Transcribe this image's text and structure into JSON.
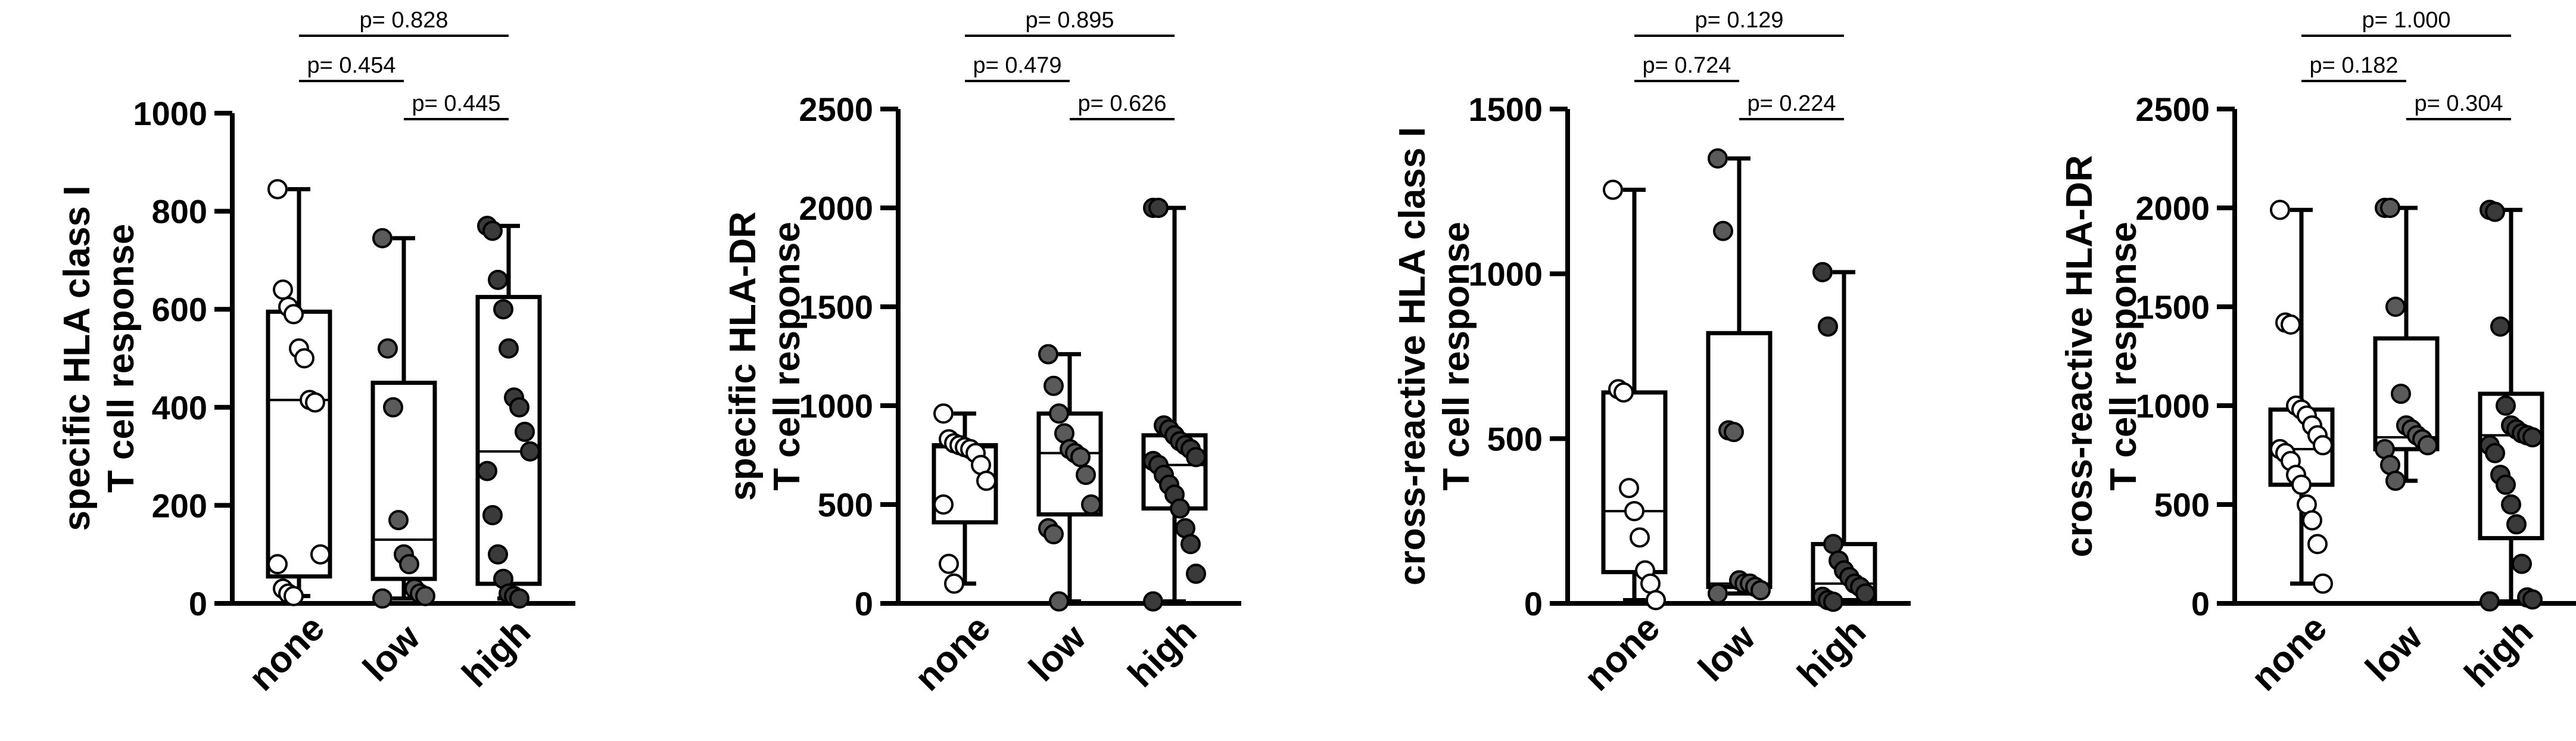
{
  "chart_data": [
    {
      "type": "box",
      "ylabel": [
        "specific HLA class I",
        "T cell response"
      ],
      "categories": [
        "none",
        "low",
        "high"
      ],
      "ylim": [
        0,
        1000
      ],
      "yticks": [
        0,
        200,
        400,
        600,
        800,
        1000
      ],
      "ytick_labels": [
        "0",
        "200",
        "400",
        "600",
        "800",
        "1000"
      ],
      "groups": [
        {
          "name": "none",
          "fill": "#ffffff",
          "q1": 55,
          "median": 415,
          "q3": 595,
          "min": 15,
          "max": 845,
          "points": [
            845,
            640,
            605,
            590,
            520,
            500,
            415,
            410,
            100,
            80,
            30,
            20,
            15
          ]
        },
        {
          "name": "low",
          "fill": "#5a5a5a",
          "q1": 50,
          "median": 130,
          "q3": 450,
          "min": 10,
          "max": 745,
          "points": [
            745,
            520,
            400,
            170,
            100,
            80,
            30,
            20,
            15,
            10
          ]
        },
        {
          "name": "high",
          "fill": "#3a3a3a",
          "q1": 40,
          "median": 310,
          "q3": 625,
          "min": 10,
          "max": 770,
          "points": [
            770,
            760,
            660,
            600,
            520,
            420,
            400,
            350,
            310,
            270,
            180,
            100,
            50,
            20,
            15,
            10
          ]
        }
      ],
      "pvalues": [
        {
          "from": 0,
          "to": 2,
          "label": "p= 0.828",
          "level": 2
        },
        {
          "from": 0,
          "to": 1,
          "label": "p= 0.454",
          "level": 1
        },
        {
          "from": 1,
          "to": 2,
          "label": "p= 0.445",
          "level": 0
        }
      ]
    },
    {
      "type": "box",
      "ylabel": [
        "specific HLA-DR",
        "T cell response"
      ],
      "categories": [
        "none",
        "low",
        "high"
      ],
      "ylim": [
        0,
        2500
      ],
      "yticks": [
        0,
        500,
        1000,
        1500,
        2000,
        2500
      ],
      "ytick_labels": [
        "0",
        "500",
        "1000",
        "1500",
        "2000",
        "2500"
      ],
      "groups": [
        {
          "name": "none",
          "fill": "#ffffff",
          "q1": 410,
          "median": 790,
          "q3": 800,
          "min": 100,
          "max": 960,
          "points": [
            960,
            830,
            810,
            800,
            790,
            780,
            760,
            700,
            620,
            500,
            200,
            100
          ]
        },
        {
          "name": "low",
          "fill": "#5a5a5a",
          "q1": 450,
          "median": 760,
          "q3": 960,
          "min": 10,
          "max": 1260,
          "points": [
            1260,
            1100,
            960,
            860,
            780,
            760,
            740,
            650,
            500,
            380,
            350,
            10
          ]
        },
        {
          "name": "high",
          "fill": "#3a3a3a",
          "q1": 480,
          "median": 700,
          "q3": 850,
          "min": 10,
          "max": 2000,
          "points": [
            2000,
            2000,
            900,
            880,
            850,
            820,
            800,
            780,
            740,
            720,
            700,
            650,
            600,
            550,
            480,
            380,
            300,
            150,
            10
          ]
        }
      ],
      "pvalues": [
        {
          "from": 0,
          "to": 2,
          "label": "p= 0.895",
          "level": 2
        },
        {
          "from": 0,
          "to": 1,
          "label": "p= 0.479",
          "level": 1
        },
        {
          "from": 1,
          "to": 2,
          "label": "p= 0.626",
          "level": 0
        }
      ]
    },
    {
      "type": "box",
      "ylabel": [
        "cross-reactive HLA class I",
        "T cell response"
      ],
      "categories": [
        "none",
        "low",
        "high"
      ],
      "ylim": [
        0,
        1500
      ],
      "yticks": [
        0,
        500,
        1000,
        1500
      ],
      "ytick_labels": [
        "0",
        "500",
        "1000",
        "1500"
      ],
      "groups": [
        {
          "name": "none",
          "fill": "#ffffff",
          "q1": 95,
          "median": 280,
          "q3": 640,
          "min": 10,
          "max": 1255,
          "points": [
            1255,
            650,
            640,
            350,
            280,
            200,
            100,
            60,
            10
          ]
        },
        {
          "name": "low",
          "fill": "#5a5a5a",
          "q1": 50,
          "median": 60,
          "q3": 820,
          "min": 30,
          "max": 1350,
          "points": [
            1350,
            1130,
            525,
            520,
            70,
            60,
            60,
            50,
            40,
            30
          ]
        },
        {
          "name": "high",
          "fill": "#3a3a3a",
          "q1": 10,
          "median": 60,
          "q3": 180,
          "min": 5,
          "max": 1005,
          "points": [
            1005,
            840,
            180,
            130,
            100,
            80,
            60,
            50,
            30,
            20,
            10,
            5
          ]
        }
      ],
      "pvalues": [
        {
          "from": 0,
          "to": 2,
          "label": "p= 0.129",
          "level": 2
        },
        {
          "from": 0,
          "to": 1,
          "label": "p= 0.724",
          "level": 1
        },
        {
          "from": 1,
          "to": 2,
          "label": "p= 0.224",
          "level": 0
        }
      ]
    },
    {
      "type": "box",
      "ylabel": [
        "cross-reactive HLA-DR",
        "T cell response"
      ],
      "categories": [
        "none",
        "low",
        "high"
      ],
      "ylim": [
        0,
        2500
      ],
      "yticks": [
        0,
        500,
        1000,
        1500,
        2000,
        2500
      ],
      "ytick_labels": [
        "0",
        "500",
        "1000",
        "1500",
        "2000",
        "2500"
      ],
      "groups": [
        {
          "name": "none",
          "fill": "#ffffff",
          "q1": 600,
          "median": 780,
          "q3": 980,
          "min": 100,
          "max": 1990,
          "points": [
            1990,
            1420,
            1410,
            1000,
            980,
            950,
            900,
            850,
            800,
            780,
            760,
            720,
            650,
            600,
            500,
            420,
            300,
            100
          ]
        },
        {
          "name": "low",
          "fill": "#5a5a5a",
          "q1": 780,
          "median": 840,
          "q3": 1340,
          "min": 620,
          "max": 2000,
          "points": [
            2000,
            2000,
            1500,
            1060,
            900,
            880,
            850,
            830,
            800,
            780,
            700,
            620
          ]
        },
        {
          "name": "high",
          "fill": "#3a3a3a",
          "q1": 330,
          "median": 850,
          "q3": 1060,
          "min": 10,
          "max": 1990,
          "points": [
            1990,
            1980,
            1400,
            1000,
            900,
            880,
            860,
            850,
            840,
            800,
            760,
            650,
            600,
            500,
            400,
            200,
            30,
            20,
            10
          ]
        }
      ],
      "pvalues": [
        {
          "from": 0,
          "to": 2,
          "label": "p= 1.000",
          "level": 2
        },
        {
          "from": 0,
          "to": 1,
          "label": "p= 0.182",
          "level": 1
        },
        {
          "from": 1,
          "to": 2,
          "label": "p= 0.304",
          "level": 0
        }
      ]
    }
  ]
}
